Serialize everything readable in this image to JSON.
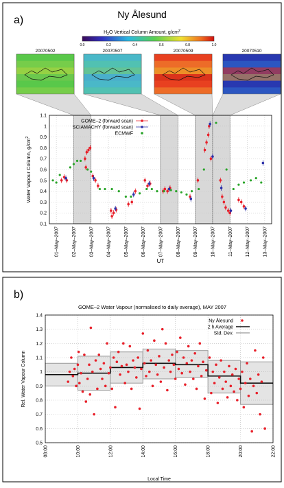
{
  "panel_a": {
    "label": "a)",
    "title": "Ny Ålesund",
    "colorbar": {
      "title_prefix": "H",
      "title_sub": "2",
      "title_suffix": "O Vertical Column Amount, g/cm",
      "title_sup": "2",
      "ticks": [
        "0.0",
        "0.2",
        "0.4",
        "0.6",
        "0.8",
        "1.0"
      ]
    },
    "maps": [
      {
        "label": "20070502",
        "style": "green-yellow"
      },
      {
        "label": "20070507",
        "style": "cyan-green"
      },
      {
        "label": "20070509",
        "style": "red-yellow"
      },
      {
        "label": "20070510",
        "style": "blue-red"
      }
    ]
  },
  "panel_b": {
    "label": "b)"
  },
  "chart_data": [
    {
      "type": "scatter",
      "title": "",
      "xlabel": "UT",
      "ylabel": "Water Vapour Column, g/cm",
      "ylabel_sup": "2",
      "ylim": [
        0.1,
        1.1
      ],
      "yticks": [
        "0.1",
        "0.2",
        "0.3",
        "0.4",
        "0.5",
        "0.6",
        "0.7",
        "0.8",
        "0.9",
        "1",
        "1.1"
      ],
      "xticks": [
        "01–May–2007",
        "02–May–2007",
        "03–May–2007",
        "04–May–2007",
        "05–May–2007",
        "06–May–2007",
        "07–May–2007",
        "08–May–2007",
        "09–May–2007",
        "10–May–2007",
        "11–May–2007",
        "12–May–2007",
        "13–May–2007"
      ],
      "grid": true,
      "legend_position": "top-center",
      "highlight_days": [
        2,
        7,
        9,
        10
      ],
      "series": [
        {
          "name": "GOME–2 (forward scan)",
          "color": "#e8202a",
          "points": [
            [
              1.3,
              0.5
            ],
            [
              1.45,
              0.53
            ],
            [
              1.6,
              0.5
            ],
            [
              2.65,
              0.7
            ],
            [
              2.75,
              0.76
            ],
            [
              2.85,
              0.78
            ],
            [
              2.95,
              0.8
            ],
            [
              2.7,
              0.62
            ],
            [
              3.1,
              0.54
            ],
            [
              3.25,
              0.5
            ],
            [
              3.4,
              0.45
            ],
            [
              4.15,
              0.22
            ],
            [
              4.3,
              0.2
            ],
            [
              4.45,
              0.23
            ],
            [
              4.2,
              0.17
            ],
            [
              5.15,
              0.28
            ],
            [
              5.35,
              0.3
            ],
            [
              5.55,
              0.4
            ],
            [
              6.1,
              0.5
            ],
            [
              6.25,
              0.45
            ],
            [
              6.4,
              0.47
            ],
            [
              7.15,
              0.4
            ],
            [
              7.25,
              0.42
            ],
            [
              7.4,
              0.4
            ],
            [
              7.55,
              0.43
            ],
            [
              8.7,
              0.35
            ],
            [
              9.15,
              0.5
            ],
            [
              9.55,
              0.78
            ],
            [
              9.65,
              0.85
            ],
            [
              9.75,
              0.92
            ],
            [
              9.8,
              1.0
            ],
            [
              9.9,
              0.7
            ],
            [
              10.45,
              0.5
            ],
            [
              10.55,
              0.35
            ],
            [
              10.65,
              0.3
            ],
            [
              10.75,
              0.25
            ],
            [
              10.9,
              0.22
            ],
            [
              11.0,
              0.2
            ],
            [
              11.5,
              0.32
            ],
            [
              11.65,
              0.3
            ],
            [
              11.8,
              0.26
            ]
          ]
        },
        {
          "name": "SCIAMACHY (forward scan)",
          "color": "#2b2fa8",
          "points": [
            [
              1.55,
              0.52
            ],
            [
              3.15,
              0.52
            ],
            [
              4.4,
              0.24
            ],
            [
              5.45,
              0.37
            ],
            [
              6.35,
              0.47
            ],
            [
              7.5,
              0.42
            ],
            [
              8.75,
              0.33
            ],
            [
              9.85,
              1.02
            ],
            [
              10.0,
              0.72
            ],
            [
              10.5,
              0.43
            ],
            [
              11.05,
              0.22
            ],
            [
              11.9,
              0.24
            ],
            [
              12.9,
              0.66
            ]
          ]
        },
        {
          "name": "ECMWF",
          "color": "#2aa52a",
          "points": [
            [
              0.8,
              0.5
            ],
            [
              1.0,
              0.48
            ],
            [
              1.2,
              0.55
            ],
            [
              1.8,
              0.62
            ],
            [
              2.0,
              0.65
            ],
            [
              2.2,
              0.68
            ],
            [
              2.4,
              0.68
            ],
            [
              2.8,
              0.6
            ],
            [
              3.0,
              0.58
            ],
            [
              3.5,
              0.42
            ],
            [
              3.8,
              0.42
            ],
            [
              4.2,
              0.42
            ],
            [
              4.6,
              0.4
            ],
            [
              5.0,
              0.35
            ],
            [
              5.3,
              0.35
            ],
            [
              5.8,
              0.38
            ],
            [
              6.2,
              0.42
            ],
            [
              6.5,
              0.42
            ],
            [
              6.8,
              0.4
            ],
            [
              7.2,
              0.4
            ],
            [
              7.6,
              0.41
            ],
            [
              7.9,
              0.4
            ],
            [
              8.2,
              0.39
            ],
            [
              8.5,
              0.37
            ],
            [
              8.8,
              0.4
            ],
            [
              9.2,
              0.42
            ],
            [
              9.5,
              0.6
            ],
            [
              10.2,
              1.03
            ],
            [
              10.8,
              0.6
            ],
            [
              11.2,
              0.42
            ],
            [
              11.5,
              0.46
            ],
            [
              11.8,
              0.48
            ],
            [
              12.2,
              0.5
            ],
            [
              12.5,
              0.52
            ],
            [
              12.8,
              0.48
            ]
          ]
        }
      ]
    },
    {
      "type": "scatter",
      "title": "GOME–2 Water Vapour (normalised to daily average), MAY 2007",
      "xlabel": "Local Time",
      "ylabel": "Rel. Water Vapour Column",
      "xlim": [
        8,
        22
      ],
      "ylim": [
        0.5,
        1.4
      ],
      "xticks": [
        "08:00",
        "10:00",
        "12:00",
        "14:00",
        "16:00",
        "18:00",
        "20:00",
        "22:00"
      ],
      "yticks": [
        "0.5",
        "0.6",
        "0.7",
        "0.8",
        "0.9",
        "1",
        "1.1",
        "1.2",
        "1.3",
        "1.4"
      ],
      "grid": true,
      "legend_position": "top-right",
      "series": [
        {
          "name": "Ny Ålesund",
          "color": "#e8202a",
          "points": [
            [
              9.4,
              0.93
            ],
            [
              9.5,
              1.0
            ],
            [
              9.6,
              1.1
            ],
            [
              9.7,
              0.97
            ],
            [
              9.8,
              1.02
            ],
            [
              9.9,
              0.9
            ],
            [
              10.0,
              1.05
            ],
            [
              10.05,
              1.14
            ],
            [
              10.1,
              0.92
            ],
            [
              10.2,
              0.99
            ],
            [
              10.3,
              0.86
            ],
            [
              10.4,
              1.12
            ],
            [
              10.5,
              0.79
            ],
            [
              10.6,
              0.95
            ],
            [
              10.7,
              1.05
            ],
            [
              10.75,
              0.84
            ],
            [
              10.8,
              1.31
            ],
            [
              10.9,
              1.0
            ],
            [
              11.0,
              0.7
            ],
            [
              11.1,
              1.08
            ],
            [
              11.2,
              0.88
            ],
            [
              11.3,
              1.12
            ],
            [
              11.4,
              1.02
            ],
            [
              11.5,
              0.95
            ],
            [
              11.6,
              1.06
            ],
            [
              11.7,
              0.9
            ],
            [
              11.8,
              1.2
            ],
            [
              11.9,
              0.99
            ],
            [
              12.0,
              1.03
            ],
            [
              12.1,
              0.88
            ],
            [
              12.2,
              1.1
            ],
            [
              12.3,
              0.75
            ],
            [
              12.4,
              1.07
            ],
            [
              12.5,
              1.14
            ],
            [
              12.6,
              0.98
            ],
            [
              12.7,
              1.04
            ],
            [
              12.8,
              1.2
            ],
            [
              12.9,
              0.92
            ],
            [
              13.0,
              1.05
            ],
            [
              13.1,
              1.0
            ],
            [
              13.2,
              1.18
            ],
            [
              13.3,
              0.88
            ],
            [
              13.4,
              1.08
            ],
            [
              13.5,
              1.03
            ],
            [
              13.6,
              0.96
            ],
            [
              13.7,
              1.1
            ],
            [
              13.8,
              0.74
            ],
            [
              13.9,
              1.02
            ],
            [
              14.0,
              1.27
            ],
            [
              14.1,
              1.06
            ],
            [
              14.2,
              0.97
            ],
            [
              14.3,
              1.15
            ],
            [
              14.4,
              1.0
            ],
            [
              14.5,
              1.08
            ],
            [
              14.6,
              0.9
            ],
            [
              14.7,
              1.22
            ],
            [
              14.8,
              1.05
            ],
            [
              14.9,
              0.98
            ],
            [
              15.0,
              1.11
            ],
            [
              15.1,
              0.93
            ],
            [
              15.2,
              1.3
            ],
            [
              15.3,
              1.03
            ],
            [
              15.4,
              1.2
            ],
            [
              15.5,
              0.87
            ],
            [
              15.6,
              1.08
            ],
            [
              15.7,
              1.0
            ],
            [
              15.8,
              1.12
            ],
            [
              15.9,
              1.05
            ],
            [
              16.0,
              0.95
            ],
            [
              16.1,
              1.14
            ],
            [
              16.2,
              1.02
            ],
            [
              16.3,
              1.24
            ],
            [
              16.4,
              0.99
            ],
            [
              16.5,
              1.1
            ],
            [
              16.6,
              0.91
            ],
            [
              16.7,
              1.06
            ],
            [
              16.8,
              1.18
            ],
            [
              16.9,
              1.0
            ],
            [
              17.0,
              1.08
            ],
            [
              17.1,
              0.95
            ],
            [
              17.2,
              1.13
            ],
            [
              17.3,
              0.88
            ],
            [
              17.4,
              1.04
            ],
            [
              17.5,
              1.2
            ],
            [
              17.6,
              0.97
            ],
            [
              17.7,
              1.07
            ],
            [
              17.8,
              0.81
            ],
            [
              17.9,
              1.01
            ],
            [
              18.1,
              1.1
            ],
            [
              18.2,
              0.85
            ],
            [
              18.3,
              1.0
            ],
            [
              18.4,
              0.92
            ],
            [
              18.5,
              1.05
            ],
            [
              18.6,
              0.78
            ],
            [
              18.7,
              0.96
            ],
            [
              18.8,
              1.08
            ],
            [
              18.9,
              0.88
            ],
            [
              19.0,
              1.0
            ],
            [
              19.1,
              0.93
            ],
            [
              19.2,
              0.82
            ],
            [
              19.3,
              1.04
            ],
            [
              19.4,
              0.9
            ],
            [
              19.5,
              0.98
            ],
            [
              19.6,
              0.86
            ],
            [
              19.7,
              1.02
            ],
            [
              19.8,
              0.8
            ],
            [
              19.9,
              0.95
            ],
            [
              20.0,
              0.88
            ],
            [
              20.1,
              1.0
            ],
            [
              20.2,
              0.75
            ],
            [
              20.3,
              0.92
            ],
            [
              20.4,
              1.06
            ],
            [
              20.5,
              0.83
            ],
            [
              20.6,
              0.95
            ],
            [
              20.7,
              0.58
            ],
            [
              20.8,
              0.9
            ],
            [
              20.9,
              1.15
            ],
            [
              21.0,
              0.85
            ],
            [
              21.1,
              0.98
            ],
            [
              21.2,
              0.7
            ],
            [
              21.3,
              0.93
            ],
            [
              21.4,
              1.1
            ],
            [
              21.5,
              0.6
            ]
          ]
        },
        {
          "name": "2 h Average",
          "color": "#111111",
          "steps": [
            [
              8,
              10,
              0.98
            ],
            [
              10,
              12,
              0.99
            ],
            [
              12,
              14,
              1.03
            ],
            [
              14,
              16,
              1.06
            ],
            [
              16,
              18,
              1.05
            ],
            [
              18,
              20,
              0.97
            ],
            [
              20,
              22,
              0.92
            ]
          ]
        },
        {
          "name": "Std. Dev.",
          "color": "#999999",
          "bands": [
            [
              8,
              10,
              0.9,
              1.06
            ],
            [
              10,
              12,
              0.87,
              1.11
            ],
            [
              12,
              14,
              0.92,
              1.14
            ],
            [
              14,
              16,
              0.95,
              1.16
            ],
            [
              16,
              18,
              0.96,
              1.15
            ],
            [
              18,
              20,
              0.85,
              1.08
            ],
            [
              20,
              22,
              0.77,
              1.07
            ]
          ]
        }
      ]
    }
  ]
}
